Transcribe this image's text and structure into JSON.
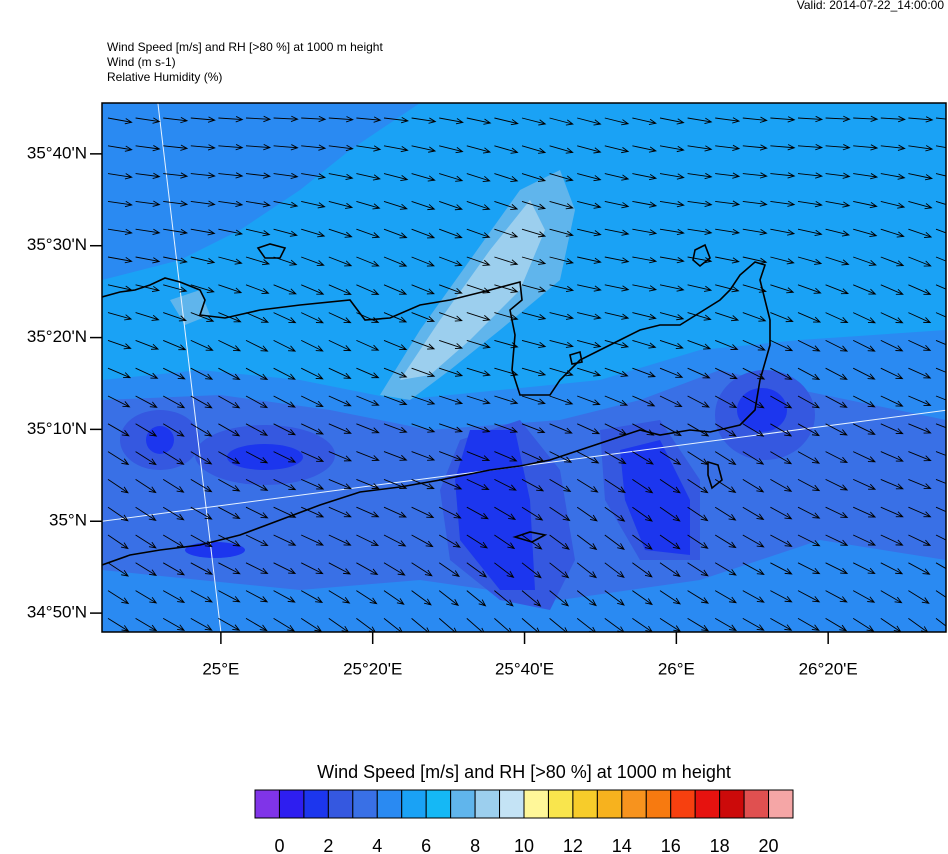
{
  "valid": "Valid: 2014-07-22_14:00:00",
  "titles": [
    "Wind Speed [m/s] and RH [>80 %] at 1000 m height",
    "Wind   (m s-1)",
    "Relative Humidity   (%)"
  ],
  "map": {
    "lat_range": [
      34.799,
      35.759
    ],
    "lon_range": [
      24.739,
      26.592
    ],
    "lat_ticks": [
      {
        "value": 34.8333,
        "label": "34°50'N"
      },
      {
        "value": 35,
        "label": "35°N"
      },
      {
        "value": 35.1667,
        "label": "35°10'N"
      },
      {
        "value": 35.3333,
        "label": "35°20'N"
      },
      {
        "value": 35.5,
        "label": "35°30'N"
      },
      {
        "value": 35.6667,
        "label": "35°40'N"
      }
    ],
    "lon_ticks": [
      {
        "value": 25,
        "label": "25°E"
      },
      {
        "value": 25.3333,
        "label": "25°20'E"
      },
      {
        "value": 25.6667,
        "label": "25°40'E"
      },
      {
        "value": 26,
        "label": "26°E"
      },
      {
        "value": 26.3333,
        "label": "26°20'E"
      }
    ]
  },
  "colorbar": {
    "title": "Wind Speed [m/s] and RH [>80 %] at 1000 m height",
    "lim": [
      -1,
      21
    ],
    "ticks": [
      0,
      2,
      4,
      6,
      8,
      10,
      12,
      14,
      16,
      18,
      20
    ],
    "colors": [
      "#8034e8",
      "#2e1ef0",
      "#1c36ee",
      "#3558e0",
      "#3970e6",
      "#2a8af2",
      "#1aa2f5",
      "#15b8f5",
      "#60b5ec",
      "#9ccfee",
      "#c4e3f5",
      "#fff799",
      "#f9e54d",
      "#f7cc2a",
      "#f7b21e",
      "#f7931e",
      "#f77a10",
      "#f7400f",
      "#e6120f",
      "#cc0a0a",
      "#e05050",
      "#f5a6a6"
    ]
  }
}
